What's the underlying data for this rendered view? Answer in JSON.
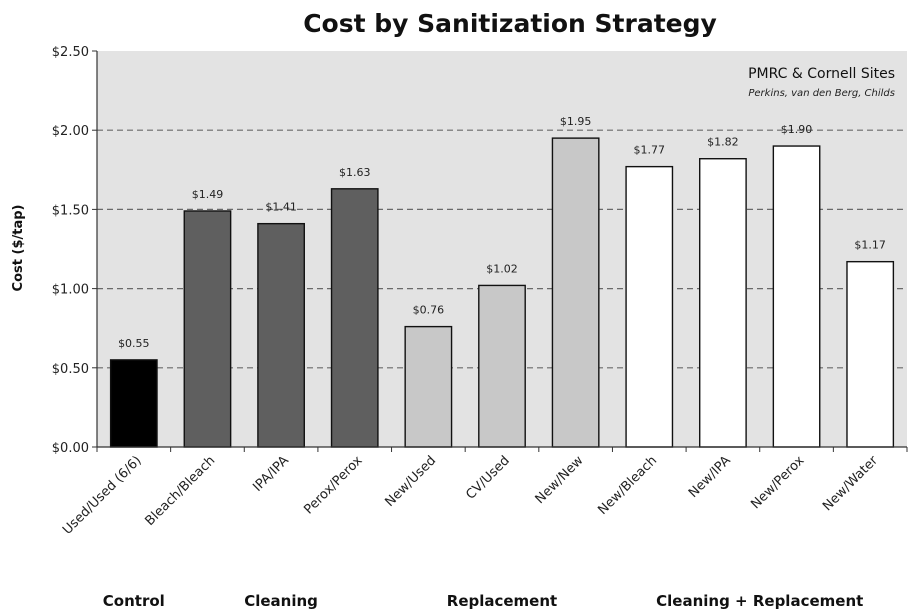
{
  "chart_data": {
    "type": "bar",
    "title": "Cost by Sanitization Strategy",
    "xlabel": "",
    "ylabel": "Cost ($/tap)",
    "ylim": [
      0,
      2.5
    ],
    "yticks": [
      0,
      0.5,
      1.0,
      1.5,
      2.0,
      2.5
    ],
    "ytick_labels": [
      "$0.00",
      "$0.50",
      "$1.00",
      "$1.50",
      "$2.00",
      "$2.50"
    ],
    "grid": "horizontal-dashed",
    "categories": [
      "Used/Used (6/6)",
      "Bleach/Bleach",
      "IPA/IPA",
      "Perox/Perox",
      "New/Used",
      "CV/Used",
      "New/New",
      "New/Bleach",
      "New/IPA",
      "New/Perox",
      "New/Water"
    ],
    "values": [
      0.55,
      1.49,
      1.41,
      1.63,
      0.76,
      1.02,
      1.95,
      1.77,
      1.82,
      1.9,
      1.17
    ],
    "value_labels": [
      "$0.55",
      "$1.49",
      "$1.41",
      "$1.63",
      "$0.76",
      "$1.02",
      "$1.95",
      "$1.77",
      "$1.82",
      "$1.90",
      "$1.17"
    ],
    "bar_colors": [
      "#000000",
      "#5f5f5f",
      "#5f5f5f",
      "#5f5f5f",
      "#c8c8c8",
      "#c8c8c8",
      "#c8c8c8",
      "#ffffff",
      "#ffffff",
      "#ffffff",
      "#ffffff"
    ],
    "groups": [
      {
        "label": "Control",
        "categories": [
          "Used/Used (6/6)"
        ]
      },
      {
        "label": "Cleaning",
        "categories": [
          "Bleach/Bleach",
          "IPA/IPA",
          "Perox/Perox"
        ]
      },
      {
        "label": "Replacement",
        "categories": [
          "New/Used",
          "CV/Used",
          "New/New"
        ]
      },
      {
        "label": "Cleaning + Replacement",
        "categories": [
          "New/Bleach",
          "New/IPA",
          "New/Perox",
          "New/Water"
        ]
      }
    ],
    "annotation": {
      "line1": "PMRC & Cornell Sites",
      "line2": "Perkins, van den Berg, Childs",
      "placement": "top-right"
    },
    "plot_background": "#e3e3e3"
  }
}
